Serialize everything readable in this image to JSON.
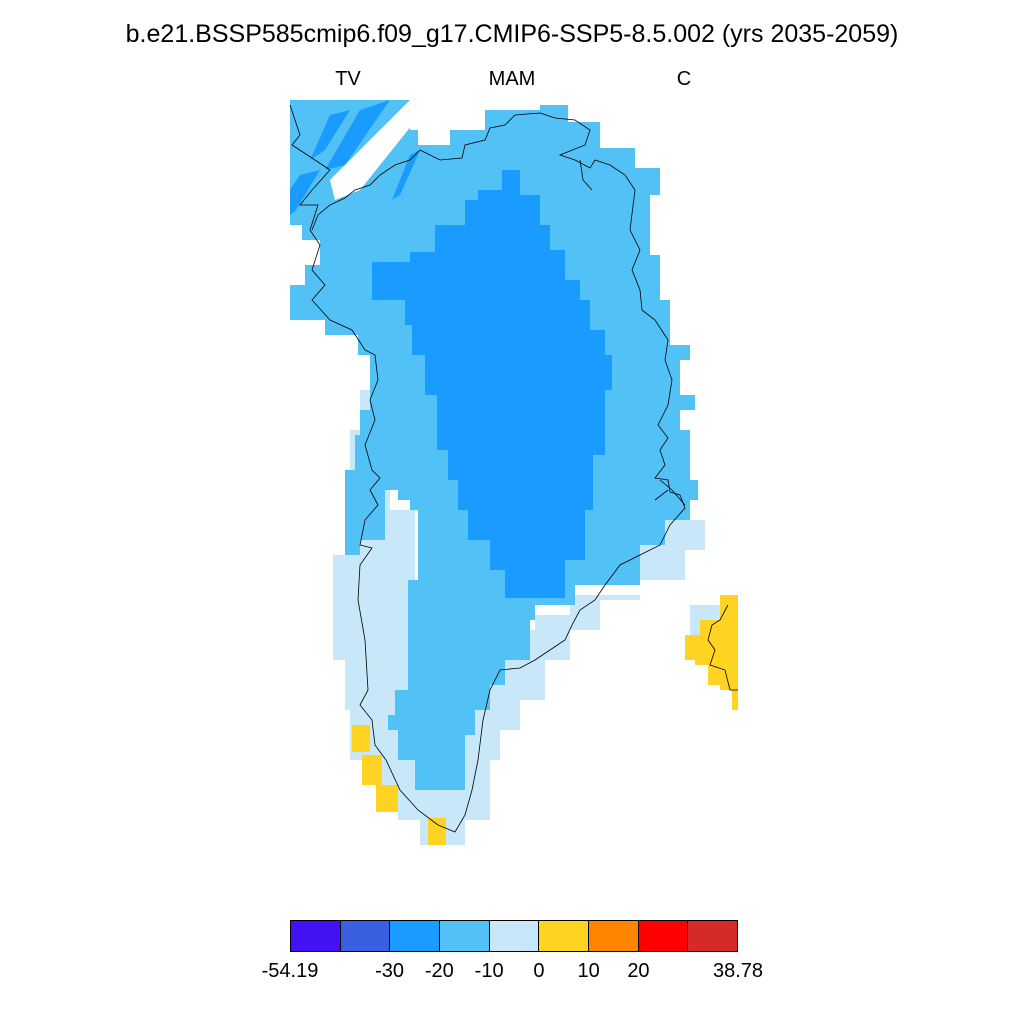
{
  "title": "b.e21.BSSP585cmip6.f09_g17.CMIP6-SSP5-8.5.002 (yrs 2035-2059)",
  "subtitles": {
    "left": "TV",
    "center": "MAM",
    "right": "C"
  },
  "palette": {
    "c1": "#4411f5",
    "c2": "#3a5fe1",
    "c3": "#1a9bff",
    "c4": "#52c1f5",
    "c5": "#c8e7f8",
    "c6": "#ffd321",
    "c7": "#ff8500",
    "c8": "#ff0000",
    "c9": "#d62a2a"
  },
  "colorbar": {
    "colors": [
      "#4411f5",
      "#3a5fe1",
      "#1a9bff",
      "#52c1f5",
      "#c8e7f8",
      "#ffd321",
      "#ff8500",
      "#ff0000",
      "#d62a2a"
    ],
    "labels": [
      {
        "text": "-54.19",
        "boundary": 0
      },
      {
        "text": "-30",
        "boundary": 2
      },
      {
        "text": "-20",
        "boundary": 3
      },
      {
        "text": "-10",
        "boundary": 4
      },
      {
        "text": "0",
        "boundary": 5
      },
      {
        "text": "10",
        "boundary": 6
      },
      {
        "text": "20",
        "boundary": 7
      },
      {
        "text": "38.78",
        "boundary": 9
      }
    ]
  }
}
